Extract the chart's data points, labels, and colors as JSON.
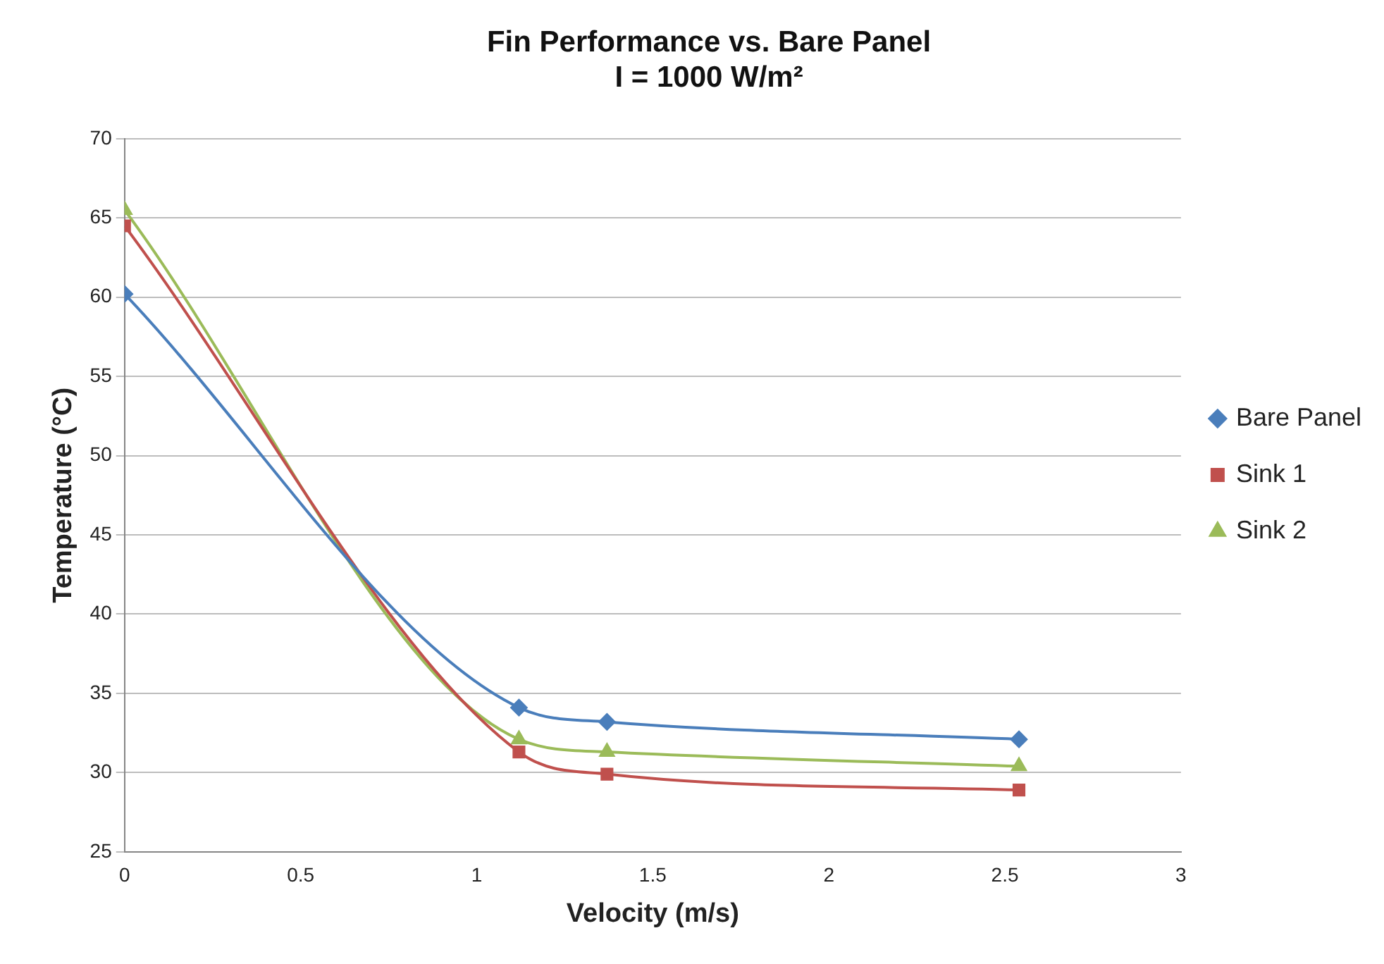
{
  "chart_data": {
    "type": "line",
    "title": "Fin Performance vs. Bare Panel\nI = 1000 W/m²",
    "xlabel": "Velocity (m/s)",
    "ylabel": "Temperature (°C)",
    "x": [
      0,
      1.12,
      1.37,
      2.54
    ],
    "series": [
      {
        "name": "Bare Panel",
        "color": "#4a7ebb",
        "marker": "diamond",
        "values": [
          60.2,
          34.1,
          33.2,
          32.1
        ]
      },
      {
        "name": "Sink 1",
        "color": "#c0504d",
        "marker": "square",
        "values": [
          64.5,
          31.3,
          29.9,
          28.9
        ]
      },
      {
        "name": "Sink 2",
        "color": "#9bbb59",
        "marker": "triangle",
        "values": [
          65.5,
          32.1,
          31.3,
          30.4
        ]
      }
    ],
    "xlim": [
      0,
      3
    ],
    "xticks": [
      0,
      0.5,
      1,
      1.5,
      2,
      2.5,
      3
    ],
    "ylim": [
      25,
      70
    ],
    "yticks": [
      25,
      30,
      35,
      40,
      45,
      50,
      55,
      60,
      65,
      70
    ],
    "grid": "y",
    "legend": "right"
  }
}
